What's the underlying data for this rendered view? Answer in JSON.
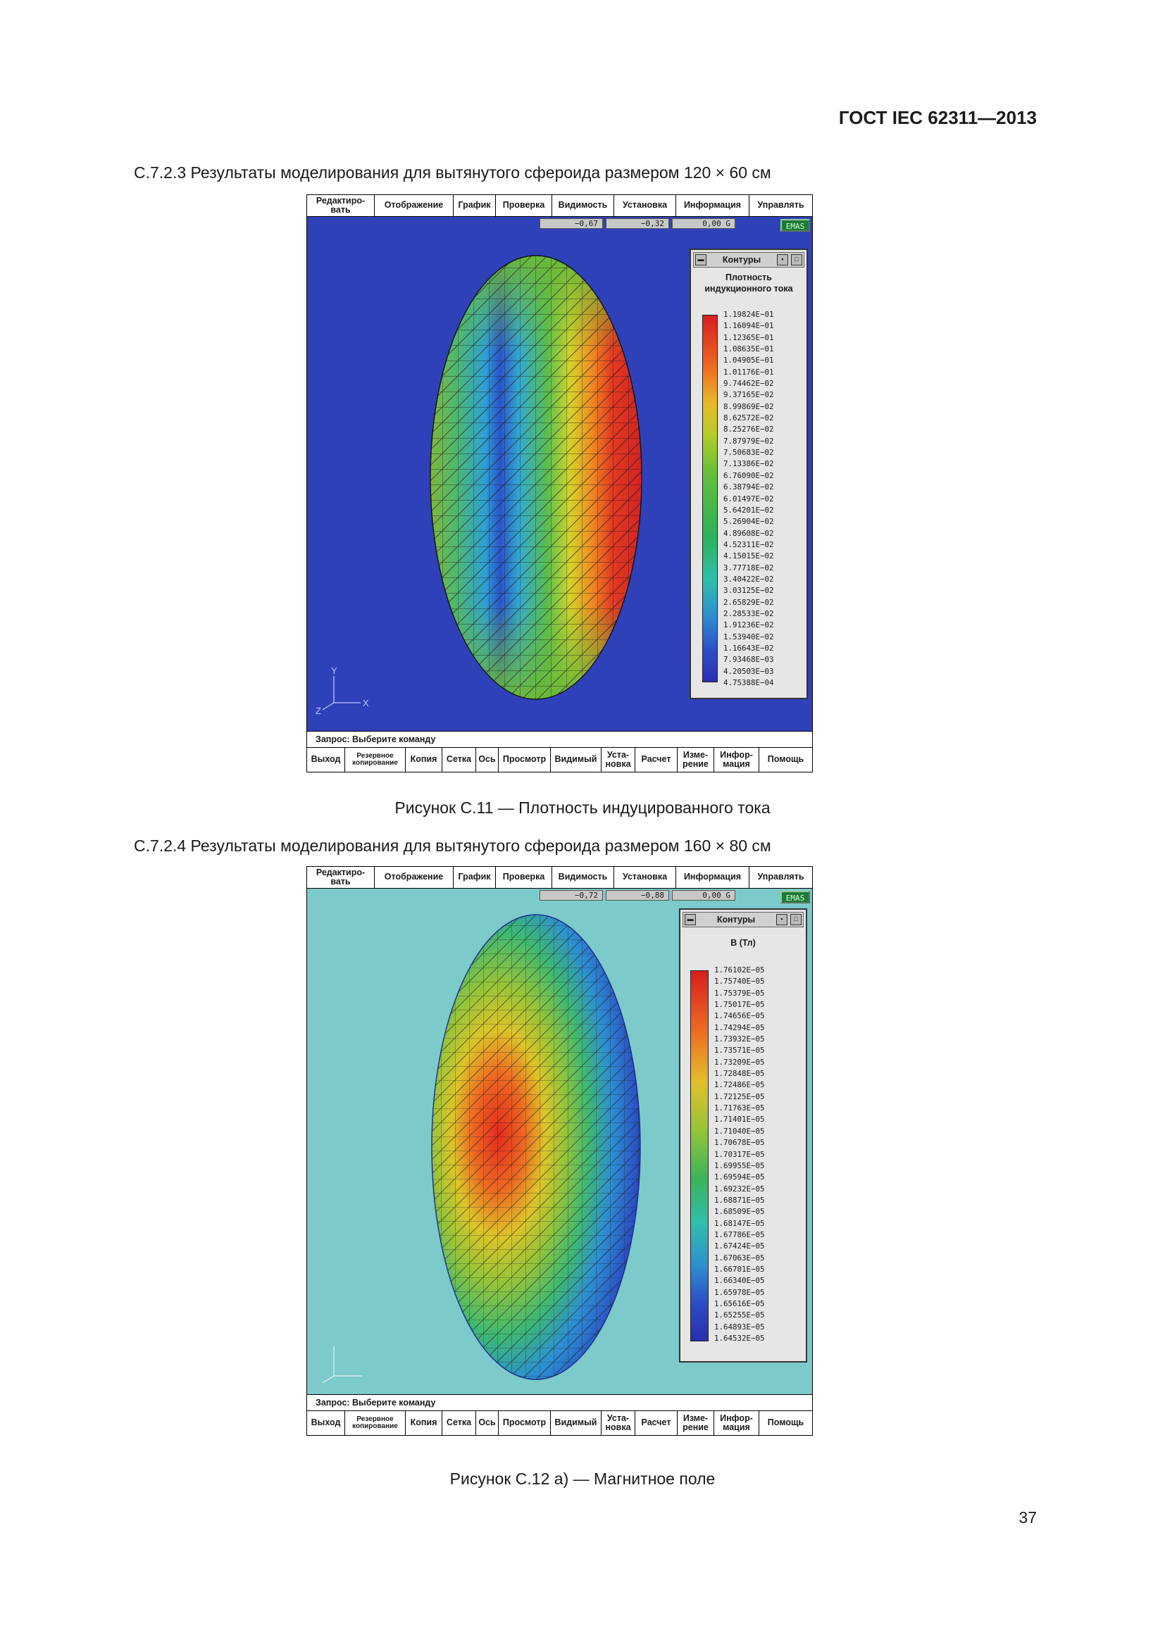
{
  "header": {
    "standard": "ГОСТ IEC 62311—2013"
  },
  "section1": {
    "heading": "С.7.2.3 Результаты моделирования для вытянутого сфероида размером 120 × 60 см"
  },
  "section2": {
    "heading": "С.7.2.4 Результаты моделирования для вытянутого сфероида размером 160 × 80 см"
  },
  "figure1": {
    "caption": "Рисунок С.11 — Плотность индуцированного тока",
    "menu": [
      "Редактиро-вать",
      "Отображение",
      "График",
      "Проверка",
      "Видимость",
      "Установка",
      "Информация",
      "Управлять"
    ],
    "coords": [
      "−0,67",
      "−0,32",
      "0,00 G"
    ],
    "emas": "EMAS",
    "panel_title": "Контуры",
    "quantity": "Плотность индукционного тока",
    "scale_labels": [
      "1.19824E−01",
      "1.16094E−01",
      "1.12365E−01",
      "1.08635E−01",
      "1.04905E−01",
      "1.01176E−01",
      "9.74462E−02",
      "9.37165E−02",
      "8.99869E−02",
      "8.62572E−02",
      "8.25276E−02",
      "7.87979E−02",
      "7.50683E−02",
      "7.13386E−02",
      "6.76090E−02",
      "6.38794E−02",
      "6.01497E−02",
      "5.64201E−02",
      "5.26904E−02",
      "4.89608E−02",
      "4.52311E−02",
      "4.15015E−02",
      "3.77718E−02",
      "3.40422E−02",
      "3.03125E−02",
      "2.65829E−02",
      "2.28533E−02",
      "1.91236E−02",
      "1.53940E−02",
      "1.16643E−02",
      "7.93468E−03",
      "4.20503E−03",
      "4.75388E−04"
    ],
    "axes": {
      "y": "Y",
      "x": "X",
      "z": "Z"
    },
    "status": "Запрос: Выберите команду",
    "bottom": [
      "Выход",
      "Резервное копирование",
      "Копия",
      "Сетка",
      "Ось",
      "Просмотр",
      "Видимый",
      "Уста-новка",
      "Расчет",
      "Изме-рение",
      "Инфор-мация",
      "Помощь"
    ]
  },
  "figure2": {
    "caption": "Рисунок С.12 а) — Магнитное поле",
    "menu": [
      "Редактиро-вать",
      "Отображение",
      "График",
      "Проверка",
      "Видимость",
      "Установка",
      "Информация",
      "Управлять"
    ],
    "coords": [
      "−0,72",
      "−0,88",
      "0,00 G"
    ],
    "emas": "EMAS",
    "panel_title": "Контуры",
    "quantity": "B (Тл)",
    "scale_labels": [
      "1.76102E−05",
      "1.75740E−05",
      "1.75379E−05",
      "1.75017E−05",
      "1.74656E−05",
      "1.74294E−05",
      "1.73932E−05",
      "1.73571E−05",
      "1.73209E−05",
      "1.72848E−05",
      "1.72486E−05",
      "1.72125E−05",
      "1.71763E−05",
      "1.71401E−05",
      "1.71040E−05",
      "1.70678E−05",
      "1.70317E−05",
      "1.69955E−05",
      "1.69594E−05",
      "1.69232E−05",
      "1.68871E−05",
      "1.68509E−05",
      "1.68147E−05",
      "1.67786E−05",
      "1.67424E−05",
      "1.67063E−05",
      "1.66701E−05",
      "1.66340E−05",
      "1.65978E−05",
      "1.65616E−05",
      "1.65255E−05",
      "1.64893E−05",
      "1.64532E−05"
    ],
    "status": "Запрос: Выберите команду",
    "bottom": [
      "Выход",
      "Резервное копирование",
      "Копия",
      "Сетка",
      "Ось",
      "Просмотр",
      "Видимый",
      "Уста-новка",
      "Расчет",
      "Изме-рение",
      "Инфор-мация",
      "Помощь"
    ]
  },
  "page": {
    "number": "37"
  },
  "colors": {
    "viewport1_bg": "#2f41b8",
    "viewport2_bg": "#7ccac9",
    "mesh": "#1a1a1a"
  }
}
